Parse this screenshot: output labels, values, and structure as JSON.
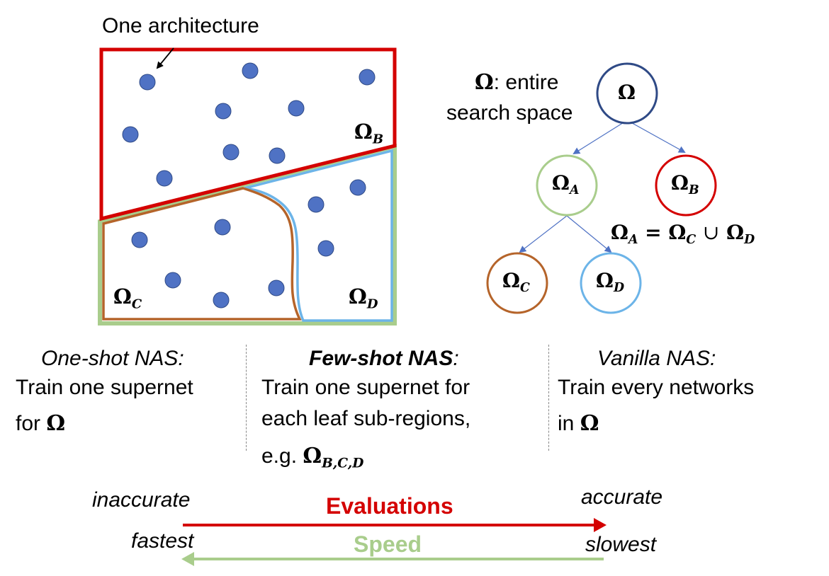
{
  "annotation": "One architecture",
  "region_labels": {
    "omega_b": {
      "sym": "Ω",
      "sub": "B"
    },
    "omega_c": {
      "sym": "Ω",
      "sub": "C"
    },
    "omega_d": {
      "sym": "Ω",
      "sub": "D"
    }
  },
  "tree": {
    "root_desc_sym": "Ω",
    "root_desc_line1": ": entire",
    "root_desc_line2": "search space",
    "nodes": {
      "root": {
        "sym": "Ω",
        "sub": ""
      },
      "a": {
        "sym": "Ω",
        "sub": "A"
      },
      "b": {
        "sym": "Ω",
        "sub": "B"
      },
      "c": {
        "sym": "Ω",
        "sub": "C"
      },
      "d": {
        "sym": "Ω",
        "sub": "D"
      }
    },
    "equation": {
      "lhs_sub": "A",
      "eq": "=",
      "c_sub": "C",
      "union": "∪",
      "d_sub": "D",
      "sym": "Ω"
    }
  },
  "methods": [
    {
      "title": "One-shot NAS:",
      "line1": "Train one supernet",
      "line2": "for ",
      "line2_sym": "Ω",
      "line3": ""
    },
    {
      "title": "Few-shot NAS",
      "title_suffix": ":",
      "line1": "Train one supernet for",
      "line2": "each leaf sub-regions,",
      "line3": "e.g. ",
      "line3_sym": "Ω",
      "line3_sub": "B,C,D"
    },
    {
      "title": "Vanilla NAS:",
      "line1": "Train every networks",
      "line2": "in ",
      "line2_sym": "Ω"
    }
  ],
  "scale": {
    "left_top": "inaccurate",
    "left_bottom": "fastest",
    "right_top": "accurate",
    "right_bottom": "slowest",
    "evaluations_label": "Evaluations",
    "speed_label": "Speed",
    "evaluations_color": "#d40000",
    "speed_color": "#a9cd8c"
  },
  "colors": {
    "omega_b": "#d40000",
    "omega_a": "#a9cd8c",
    "omega_c": "#b5642a",
    "omega_d": "#6cb4e8",
    "root": "#2f4a86",
    "dot": "#4f72c4"
  }
}
